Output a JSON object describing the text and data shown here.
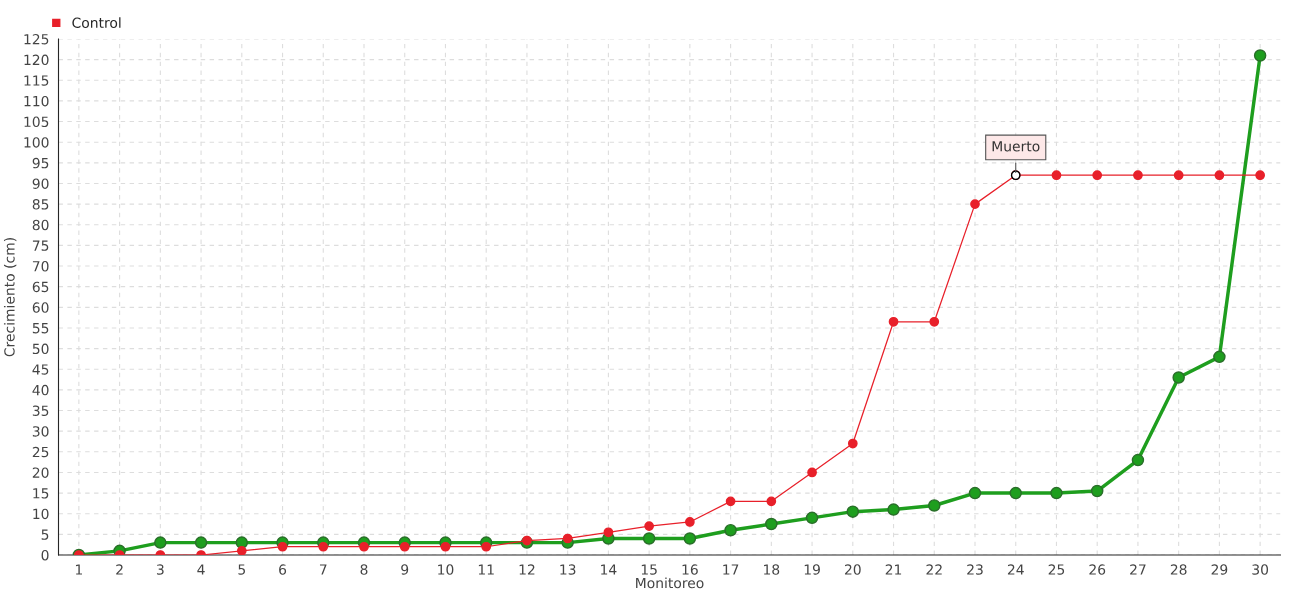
{
  "chart_data": {
    "type": "line",
    "xlabel": "Monitoreo",
    "ylabel": "Crecimiento (cm)",
    "categories": [
      "1",
      "2",
      "3",
      "4",
      "5",
      "6",
      "7",
      "8",
      "9",
      "10",
      "11",
      "12",
      "13",
      "14",
      "15",
      "16",
      "17",
      "18",
      "19",
      "20",
      "21",
      "22",
      "23",
      "24",
      "25",
      "26",
      "27",
      "28",
      "29",
      "30"
    ],
    "series": [
      {
        "color": "#1e9e1e",
        "values": [
          0,
          1,
          3,
          3,
          3,
          3,
          3,
          3,
          3,
          3,
          3,
          3,
          3,
          4,
          4,
          4,
          6,
          7.5,
          9,
          10.5,
          11,
          12,
          15,
          15,
          15,
          15.5,
          23,
          43,
          48,
          121
        ]
      },
      {
        "name": "Control",
        "color": "#e8202a",
        "values": [
          0,
          0,
          0,
          0,
          1,
          2,
          2,
          2,
          2,
          2,
          2,
          3.5,
          4,
          5.5,
          7,
          8,
          13,
          13,
          20,
          27,
          56.5,
          56.5,
          85,
          92,
          92,
          92,
          92,
          92,
          92,
          92
        ]
      }
    ],
    "ylim": [
      0,
      125
    ],
    "yticks": [
      0,
      5,
      10,
      15,
      20,
      25,
      30,
      35,
      40,
      45,
      50,
      55,
      60,
      65,
      70,
      75,
      80,
      85,
      90,
      95,
      100,
      105,
      110,
      115,
      120,
      125
    ],
    "annotations": [
      {
        "text": "Muerto",
        "x": "24",
        "y": 92
      }
    ],
    "grid": true,
    "legend": "top left",
    "marker": "circle",
    "line_style": "solid"
  }
}
